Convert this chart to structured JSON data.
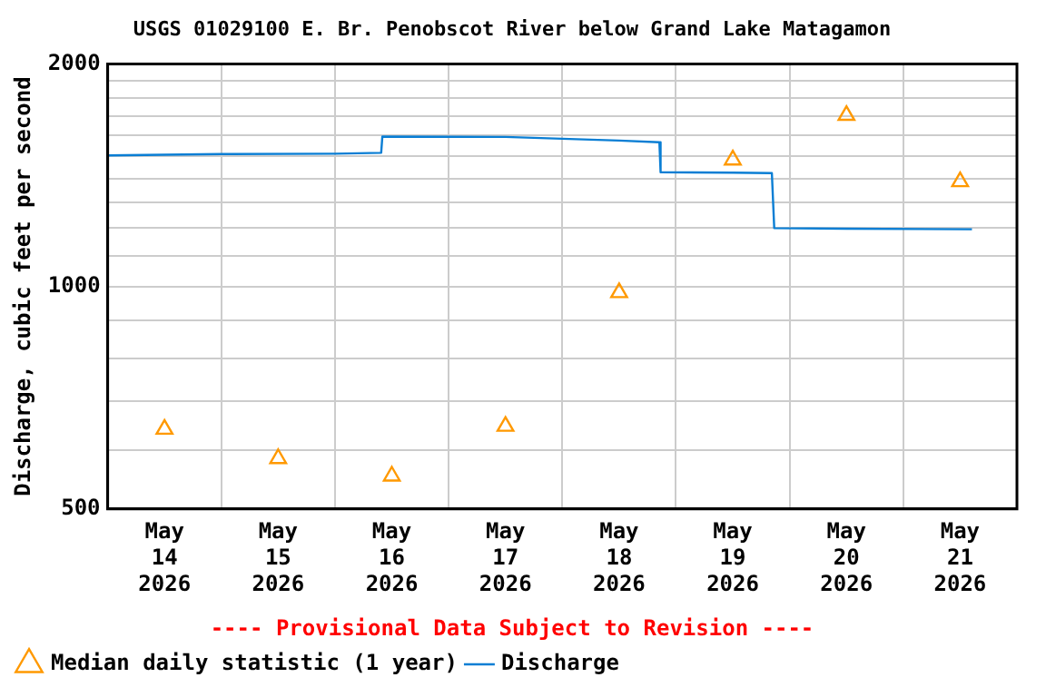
{
  "chart_data": {
    "type": "scatter",
    "title": "USGS 01029100 E. Br. Penobscot River below Grand Lake Matagamon",
    "ylabel": "Discharge, cubic feet per second",
    "annotations": [
      "---- Provisional Data Subject to Revision ----"
    ],
    "series": [
      {
        "name": "Median daily statistic (1 year)",
        "type": "scatter",
        "marker": "triangle",
        "color": "#ff9900",
        "x": [
          "2026-05-14T12:00",
          "2026-05-15T12:00",
          "2026-05-16T12:00",
          "2026-05-17T12:00",
          "2026-05-18T12:00",
          "2026-05-19T12:00",
          "2026-05-20T12:00",
          "2026-05-21T12:00"
        ],
        "values": [
          641,
          585,
          554,
          647,
          981,
          1483,
          1704,
          1386
        ]
      },
      {
        "name": "Discharge",
        "type": "line",
        "marker": "none",
        "line_style": "solid",
        "color": "#0a7ed4",
        "x": [
          "2026-05-14T00:00",
          "2026-05-15T00:00",
          "2026-05-16T00:00",
          "2026-05-16T09:45",
          "2026-05-16T10:00",
          "2026-05-17T12:00",
          "2026-05-18T12:00",
          "2026-05-18T20:30",
          "2026-05-18T20:45",
          "2026-05-19T12:00",
          "2026-05-19T20:15",
          "2026-05-19T20:45",
          "2026-05-20T12:00",
          "2026-05-21T14:30"
        ],
        "values": [
          1504,
          1510,
          1512,
          1516,
          1595,
          1593,
          1575,
          1567,
          1427,
          1425,
          1423,
          1199,
          1197,
          1195
        ]
      }
    ],
    "log": "y",
    "xlim": [
      "2026-05-14T00:00",
      "2026-05-22T00:00"
    ],
    "xticks": [
      {
        "value": "2026-05-14T00:00",
        "label": null
      },
      {
        "value": "2026-05-14T12:00",
        "label": "May\n14\n2026"
      },
      {
        "value": "2026-05-15T00:00",
        "label": null
      },
      {
        "value": "2026-05-15T12:00",
        "label": "May\n15\n2026"
      },
      {
        "value": "2026-05-16T00:00",
        "label": null
      },
      {
        "value": "2026-05-16T12:00",
        "label": "May\n16\n2026"
      },
      {
        "value": "2026-05-17T00:00",
        "label": null
      },
      {
        "value": "2026-05-17T12:00",
        "label": "May\n17\n2026"
      },
      {
        "value": "2026-05-18T00:00",
        "label": null
      },
      {
        "value": "2026-05-18T12:00",
        "label": "May\n18\n2026"
      },
      {
        "value": "2026-05-19T00:00",
        "label": null
      },
      {
        "value": "2026-05-19T12:00",
        "label": "May\n19\n2026"
      },
      {
        "value": "2026-05-20T00:00",
        "label": null
      },
      {
        "value": "2026-05-20T12:00",
        "label": "May\n20\n2026"
      },
      {
        "value": "2026-05-21T00:00",
        "label": null
      },
      {
        "value": "2026-05-21T12:00",
        "label": "May\n21\n2026"
      },
      {
        "value": "2026-05-22T00:00",
        "label": null
      }
    ],
    "ylim": [
      500,
      2000
    ],
    "yticks": [
      500,
      {
        "value": 600,
        "label": null
      },
      {
        "value": 700,
        "label": null
      },
      {
        "value": 800,
        "label": null
      },
      {
        "value": 900,
        "label": null
      },
      1000,
      {
        "value": 1100,
        "label": null
      },
      {
        "value": 1200,
        "label": null
      },
      {
        "value": 1300,
        "label": null
      },
      {
        "value": 1400,
        "label": null
      },
      {
        "value": 1500,
        "label": null
      },
      {
        "value": 1600,
        "label": null
      },
      {
        "value": 1700,
        "label": null
      },
      {
        "value": 1800,
        "label": null
      },
      {
        "value": 1900,
        "label": null
      },
      2000
    ],
    "grid": true,
    "legend": "bottom left"
  }
}
